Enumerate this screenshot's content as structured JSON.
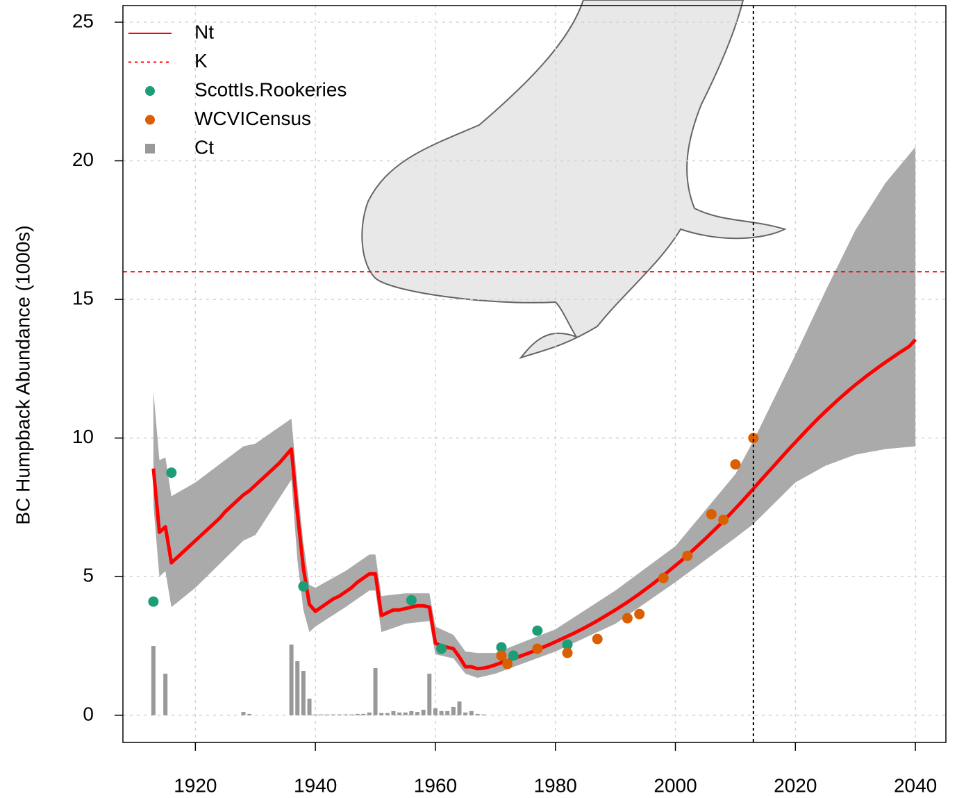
{
  "chart_data": {
    "type": "line",
    "ylabel": "BC Humpback Abundance (1000s)",
    "xlim": [
      1907.92,
      2045.08
    ],
    "ylim": [
      -0.98,
      25.6
    ],
    "xticks": [
      1920,
      1940,
      1960,
      1980,
      2000,
      2020,
      2040
    ],
    "yticks": [
      0,
      5,
      10,
      15,
      20,
      25
    ],
    "grid": true,
    "legend": "top-left",
    "vline": 2013,
    "series": [
      {
        "name": "Nt",
        "type": "line",
        "color": "#ff0000",
        "x": [
          1913,
          1914,
          1915,
          1916,
          1917,
          1918,
          1919,
          1920,
          1921,
          1922,
          1923,
          1924,
          1925,
          1926,
          1927,
          1928,
          1929,
          1930,
          1931,
          1932,
          1933,
          1934,
          1935,
          1936,
          1937,
          1938,
          1939,
          1940,
          1941,
          1942,
          1943,
          1944,
          1945,
          1946,
          1947,
          1948,
          1949,
          1950,
          1951,
          1952,
          1953,
          1954,
          1955,
          1956,
          1957,
          1958,
          1959,
          1960,
          1961,
          1962,
          1963,
          1964,
          1965,
          1966,
          1967,
          1968,
          1969,
          1970,
          1971,
          1972,
          1973,
          1974,
          1975,
          1976,
          1977,
          1978,
          1979,
          1980,
          1981,
          1982,
          1983,
          1984,
          1985,
          1986,
          1987,
          1988,
          1989,
          1990,
          1991,
          1992,
          1993,
          1994,
          1995,
          1996,
          1997,
          1998,
          1999,
          2000,
          2001,
          2002,
          2003,
          2004,
          2005,
          2006,
          2007,
          2008,
          2009,
          2010,
          2011,
          2012,
          2013,
          2014,
          2015,
          2016,
          2017,
          2018,
          2019,
          2020,
          2021,
          2022,
          2023,
          2024,
          2025,
          2026,
          2027,
          2028,
          2029,
          2030,
          2031,
          2032,
          2033,
          2034,
          2035,
          2036,
          2037,
          2038,
          2039,
          2040
        ],
        "values": [
          8.9,
          6.6,
          6.8,
          5.5,
          5.7,
          5.9,
          6.1,
          6.3,
          6.5,
          6.7,
          6.9,
          7.1,
          7.35,
          7.55,
          7.75,
          7.95,
          8.1,
          8.3,
          8.5,
          8.7,
          8.9,
          9.1,
          9.35,
          9.6,
          7.3,
          5.3,
          4.0,
          3.75,
          3.9,
          4.05,
          4.2,
          4.3,
          4.45,
          4.6,
          4.8,
          4.95,
          5.1,
          5.1,
          3.6,
          3.7,
          3.8,
          3.8,
          3.85,
          3.9,
          3.95,
          3.95,
          3.9,
          2.6,
          2.5,
          2.45,
          2.4,
          2.1,
          1.75,
          1.75,
          1.68,
          1.7,
          1.75,
          1.82,
          1.9,
          1.97,
          2.05,
          2.12,
          2.2,
          2.28,
          2.37,
          2.46,
          2.55,
          2.65,
          2.75,
          2.85,
          2.95,
          3.06,
          3.17,
          3.29,
          3.41,
          3.54,
          3.67,
          3.8,
          3.94,
          4.08,
          4.23,
          4.38,
          4.54,
          4.7,
          4.87,
          5.04,
          5.22,
          5.4,
          5.58,
          5.77,
          5.97,
          6.17,
          6.37,
          6.58,
          6.79,
          7.01,
          7.23,
          7.46,
          7.69,
          7.93,
          8.17,
          8.42,
          8.66,
          8.9,
          9.14,
          9.38,
          9.62,
          9.85,
          10.08,
          10.31,
          10.53,
          10.75,
          10.96,
          11.16,
          11.36,
          11.55,
          11.74,
          11.92,
          12.09,
          12.26,
          12.42,
          12.58,
          12.73,
          12.88,
          13.03,
          13.17,
          13.31,
          13.55
        ]
      },
      {
        "name": "K",
        "type": "hline",
        "color": "#ff0000",
        "values": [
          16
        ]
      },
      {
        "name": "ScottIs.Rookeries",
        "type": "scatter",
        "color": "#1b9e77",
        "x": [
          1913,
          1916,
          1938,
          1956,
          1961,
          1971,
          1973,
          1977,
          1982
        ],
        "values": [
          4.1,
          8.75,
          4.65,
          4.15,
          2.4,
          2.45,
          2.15,
          3.05,
          2.55
        ]
      },
      {
        "name": "WCVICensus",
        "type": "scatter",
        "color": "#d95f02",
        "x": [
          1971,
          1972,
          1977,
          1982,
          1987,
          1992,
          1994,
          1998,
          2002,
          2006,
          2008,
          2010,
          2013
        ],
        "values": [
          2.15,
          1.85,
          2.4,
          2.25,
          2.75,
          3.5,
          3.65,
          4.95,
          5.75,
          7.25,
          7.05,
          9.05,
          10.0
        ]
      },
      {
        "name": "Ct",
        "type": "bar",
        "color": "#999999",
        "x": [
          1913,
          1915,
          1928,
          1929,
          1936,
          1937,
          1938,
          1939,
          1940,
          1941,
          1942,
          1943,
          1944,
          1945,
          1946,
          1947,
          1948,
          1949,
          1950,
          1951,
          1952,
          1953,
          1954,
          1955,
          1956,
          1957,
          1958,
          1959,
          1960,
          1961,
          1962,
          1963,
          1964,
          1965,
          1966,
          1967,
          1968
        ],
        "values": [
          2.5,
          1.5,
          0.12,
          0.05,
          2.55,
          1.95,
          1.6,
          0.6,
          0.03,
          0.03,
          0.03,
          0.03,
          0.03,
          0.03,
          0.03,
          0.05,
          0.05,
          0.1,
          1.7,
          0.08,
          0.08,
          0.15,
          0.1,
          0.1,
          0.15,
          0.12,
          0.2,
          1.5,
          0.25,
          0.15,
          0.15,
          0.3,
          0.5,
          0.1,
          0.15,
          0.05,
          0.03
        ]
      },
      {
        "type": "band",
        "color": "#aaaaaa",
        "x": [
          1913,
          1914,
          1915,
          1916,
          1920,
          1928,
          1930,
          1936,
          1937,
          1938,
          1939,
          1940,
          1945,
          1949,
          1950,
          1951,
          1955,
          1959,
          1960,
          1963,
          1965,
          1967,
          1970,
          1980,
          1990,
          2000,
          2010,
          2013,
          2020,
          2025,
          2030,
          2035,
          2040
        ],
        "lower": [
          7.6,
          5.0,
          5.2,
          3.9,
          4.6,
          6.3,
          6.5,
          8.5,
          5.6,
          3.8,
          3.0,
          3.2,
          3.9,
          4.5,
          4.5,
          3.0,
          3.3,
          3.4,
          2.2,
          2.05,
          1.5,
          1.35,
          1.5,
          2.3,
          3.3,
          4.8,
          6.4,
          6.9,
          8.4,
          9.0,
          9.4,
          9.6,
          9.7
        ],
        "upper": [
          11.7,
          9.2,
          9.3,
          7.9,
          8.4,
          9.7,
          9.8,
          10.7,
          8.3,
          6.2,
          4.7,
          4.6,
          5.2,
          5.8,
          5.8,
          4.3,
          4.4,
          4.4,
          3.2,
          2.9,
          2.3,
          2.25,
          2.25,
          3.1,
          4.5,
          6.1,
          8.7,
          9.9,
          13.0,
          15.3,
          17.5,
          19.2,
          20.5
        ]
      }
    ]
  }
}
